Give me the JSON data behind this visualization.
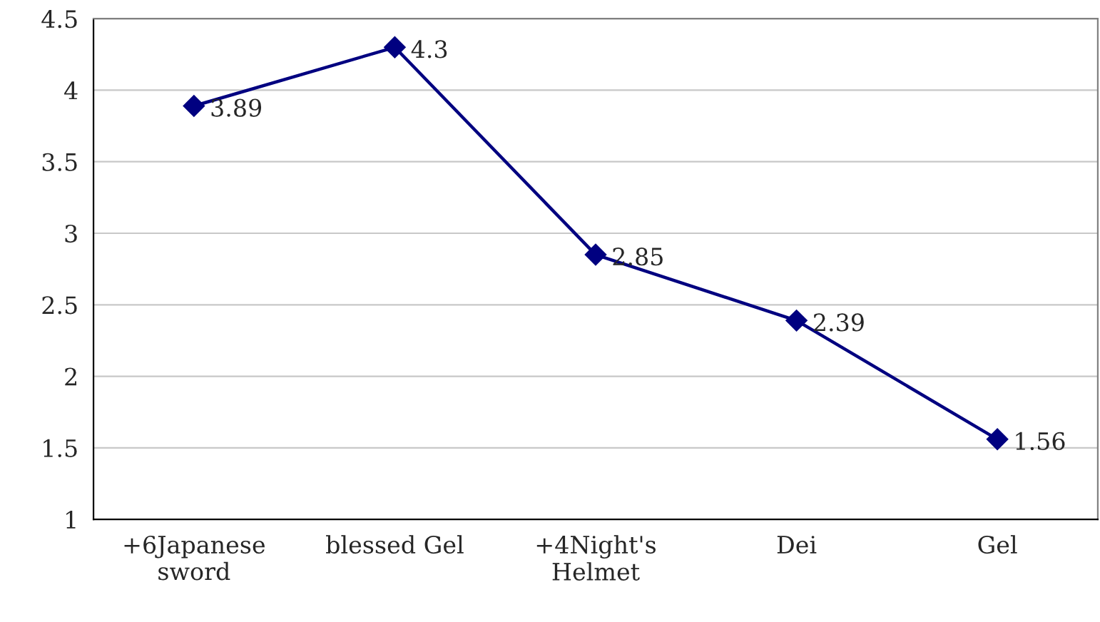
{
  "chart_data": {
    "type": "line",
    "categories": [
      "+6Japanese\nsword",
      "blessed Gel",
      "+4Night's\nHelmet",
      "Dei",
      "Gel"
    ],
    "series": [
      {
        "color": "#000080",
        "values": [
          3.89,
          4.3,
          2.85,
          2.39,
          1.56
        ]
      }
    ],
    "ylim": [
      1,
      4.5
    ],
    "yticks": [
      1,
      1.5,
      2,
      2.5,
      3,
      3.5,
      4,
      4.5
    ],
    "grid": "y",
    "marker": "diamond",
    "line_style": "solid",
    "data_labels": true
  }
}
